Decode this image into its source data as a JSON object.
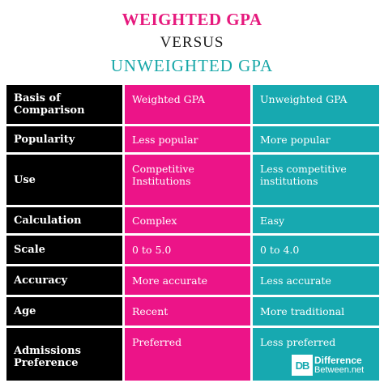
{
  "header": {
    "title": "WEIGHTED GPA",
    "versus": "VERSUS",
    "subtitle": "UNWEIGHTED GPA"
  },
  "table": {
    "rows": [
      {
        "label": "Basis of Comparison",
        "weighted": "Weighted GPA",
        "unweighted": "Unweighted GPA"
      },
      {
        "label": "Popularity",
        "weighted": "Less popular",
        "unweighted": "More popular"
      },
      {
        "label": "Use",
        "weighted": "Competitive Institutions",
        "unweighted": "Less competitive institutions"
      },
      {
        "label": "Calculation",
        "weighted": "Complex",
        "unweighted": "Easy"
      },
      {
        "label": "Scale",
        "weighted": "0 to 5.0",
        "unweighted": "0 to 4.0"
      },
      {
        "label": "Accuracy",
        "weighted": "More accurate",
        "unweighted": "Less accurate"
      },
      {
        "label": "Age",
        "weighted": "Recent",
        "unweighted": "More traditional"
      },
      {
        "label": "Admissions Preference",
        "weighted": "Preferred",
        "unweighted": "Less preferred"
      }
    ]
  },
  "logo": {
    "mark": "DB",
    "line1": "Difference",
    "line2": "Between.net"
  },
  "colors": {
    "pink": "#ec1488",
    "teal": "#17a9b0",
    "black": "#000000"
  }
}
